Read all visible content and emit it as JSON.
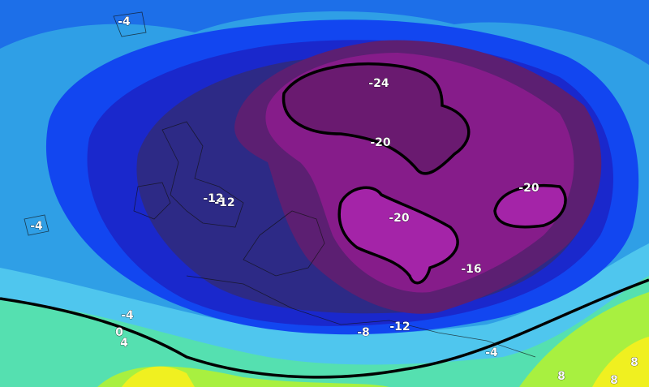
{
  "labels": [
    "-4",
    "-24",
    "-20",
    "-12",
    "-12",
    "-4",
    "-20",
    "-20",
    "-16",
    "-4",
    "0",
    "4",
    "-8",
    "-12",
    "-4",
    "8",
    "8",
    "8"
  ]
}
